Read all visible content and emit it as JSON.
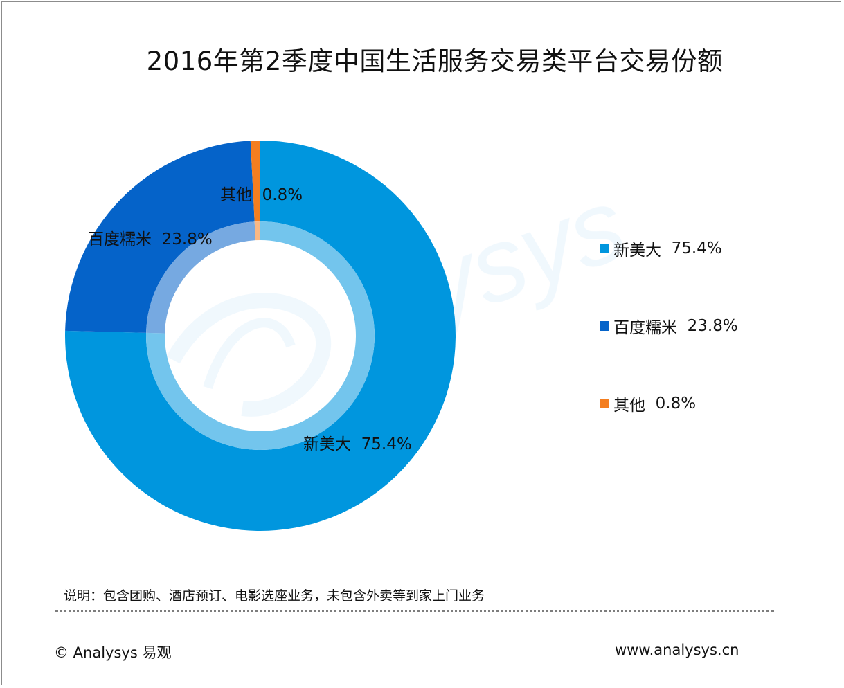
{
  "chart_data": {
    "type": "pie",
    "title": "2016年第2季度中国生活服务交易类平台交易份额",
    "slices": [
      {
        "label": "新美大",
        "value": 75.4,
        "value_label": "75.4%",
        "color": "#0096de"
      },
      {
        "label": "百度糯米",
        "value": 23.8,
        "value_label": "23.8%",
        "color": "#0563c9"
      },
      {
        "label": "其他",
        "value": 0.8,
        "value_label": "0.8%",
        "color": "#f47e20"
      }
    ],
    "legend_position": "right"
  },
  "note": "说明：包含团购、酒店预订、电影选座业务，未包含外卖等到家上门业务",
  "footer": {
    "left": "© Analysys 易观",
    "right": "www.analysys.cn"
  }
}
